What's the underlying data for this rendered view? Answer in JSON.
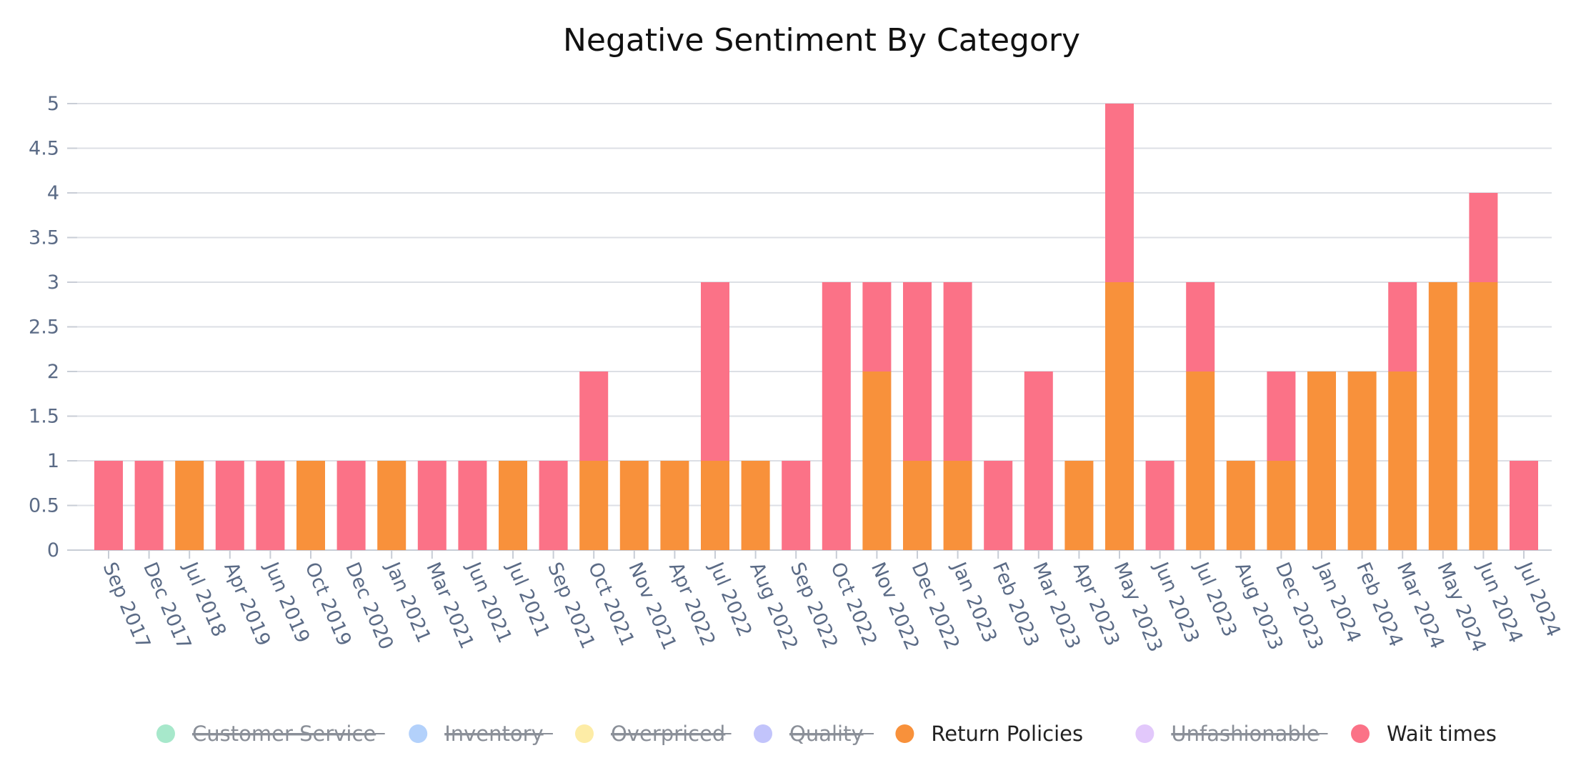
{
  "chart_data": {
    "type": "bar",
    "stacked": true,
    "title": "Negative Sentiment By Category",
    "xlabel": "",
    "ylabel": "",
    "ylim": [
      0,
      5
    ],
    "yticks": [
      "0",
      "0.5",
      "1",
      "1.5",
      "2",
      "2.5",
      "3",
      "3.5",
      "4",
      "4.5",
      "5"
    ],
    "grid": true,
    "legend_position": "bottom",
    "categories": [
      "Sep 2017",
      "Dec 2017",
      "Jul 2018",
      "Apr 2019",
      "Jun 2019",
      "Oct 2019",
      "Dec 2020",
      "Jan 2021",
      "Mar 2021",
      "Jun 2021",
      "Jul 2021",
      "Sep 2021",
      "Oct 2021",
      "Nov 2021",
      "Apr 2022",
      "Jul 2022",
      "Aug 2022",
      "Sep 2022",
      "Oct 2022",
      "Nov 2022",
      "Dec 2022",
      "Jan 2023",
      "Feb 2023",
      "Mar 2023",
      "Apr 2023",
      "May 2023",
      "Jun 2023",
      "Jul 2023",
      "Aug 2023",
      "Dec 2023",
      "Jan 2024",
      "Feb 2024",
      "Mar 2024",
      "May 2024",
      "Jun 2024",
      "Jul 2024"
    ],
    "legend": [
      {
        "name": "Customer Service",
        "color": "#a7e8cb",
        "hidden": true
      },
      {
        "name": "Inventory",
        "color": "#b3d1fb",
        "hidden": true
      },
      {
        "name": "Overpriced",
        "color": "#fdeca6",
        "hidden": true
      },
      {
        "name": "Quality",
        "color": "#c2c4fb",
        "hidden": true
      },
      {
        "name": "Return Policies",
        "color": "#f8913b",
        "hidden": false
      },
      {
        "name": "Unfashionable",
        "color": "#e2c8fb",
        "hidden": true
      },
      {
        "name": "Wait times",
        "color": "#fb7287",
        "hidden": false
      }
    ],
    "series": [
      {
        "name": "Return Policies",
        "color": "#f8913b",
        "values": [
          0,
          0,
          1,
          0,
          0,
          1,
          0,
          1,
          0,
          0,
          1,
          0,
          1,
          1,
          1,
          1,
          1,
          0,
          0,
          2,
          1,
          1,
          0,
          0,
          1,
          3,
          0,
          2,
          1,
          1,
          2,
          2,
          2,
          3,
          3,
          0
        ]
      },
      {
        "name": "Wait times",
        "color": "#fb7287",
        "values": [
          1,
          1,
          0,
          1,
          1,
          0,
          1,
          0,
          1,
          1,
          0,
          1,
          1,
          0,
          0,
          2,
          0,
          1,
          3,
          1,
          2,
          2,
          1,
          2,
          0,
          2,
          1,
          1,
          0,
          1,
          0,
          0,
          1,
          0,
          1,
          1
        ]
      }
    ]
  },
  "colors": {
    "grid": "#dcdfe5",
    "axis": "#c8cdd6",
    "tick_text": "#5b6b86",
    "legend_hidden_text": "#8a8f98",
    "legend_active_text": "#222222"
  }
}
